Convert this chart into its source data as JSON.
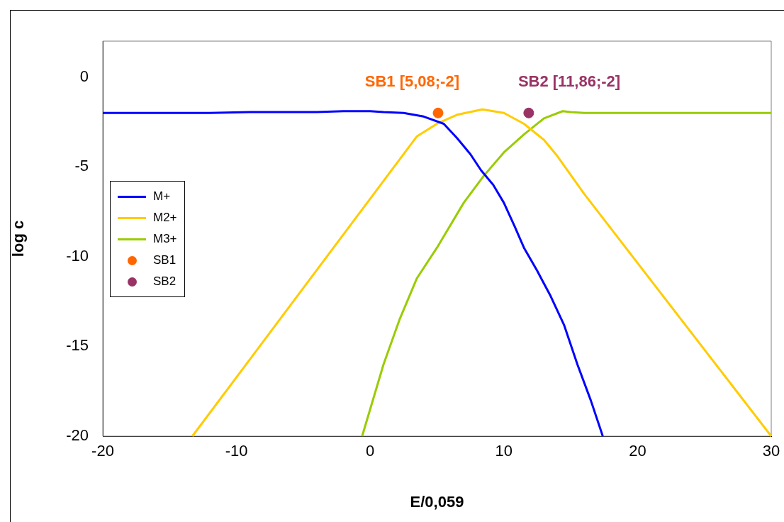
{
  "chart_data": {
    "type": "line",
    "xlabel": "E/0,059",
    "ylabel": "log c",
    "xlim": [
      -20,
      30
    ],
    "xticks": [
      -20,
      -10,
      0,
      10,
      20,
      30
    ],
    "ylim": [
      -20,
      2
    ],
    "yticks": [
      -20,
      -15,
      -10,
      -5,
      0
    ],
    "grid": false,
    "legend": "left",
    "marker": "none",
    "line_style": "solid",
    "series": [
      {
        "name": "M+",
        "color": "#0000ff",
        "x": [
          -20,
          -12,
          -9,
          -4,
          -2,
          0,
          1,
          2.5,
          4,
          5.5,
          6.5,
          7.5,
          8.3,
          9.2,
          10,
          10.8,
          11.5,
          12.5,
          13.5,
          14.5,
          15.5,
          16.5,
          17.4
        ],
        "values": [
          -2,
          -2,
          -1.95,
          -1.95,
          -1.9,
          -1.9,
          -1.95,
          -2,
          -2.2,
          -2.6,
          -3.4,
          -4.3,
          -5.2,
          -6,
          -7,
          -8.3,
          -9.5,
          -10.8,
          -12.2,
          -13.8,
          -16,
          -18,
          -20
        ]
      },
      {
        "name": "M2+",
        "color": "#ffcc00",
        "x": [
          -13.3,
          3.5,
          5,
          6.5,
          8.4,
          10,
          11.5,
          13,
          14,
          16,
          30
        ],
        "values": [
          -20,
          -3.3,
          -2.6,
          -2.1,
          -1.8,
          -2,
          -2.6,
          -3.5,
          -4.4,
          -6.5,
          -20
        ]
      },
      {
        "name": "M3+",
        "color": "#99cc00",
        "x": [
          -0.6,
          1,
          2.2,
          3.5,
          5,
          7,
          8.5,
          10,
          11.5,
          13,
          14.4,
          15,
          16,
          30
        ],
        "values": [
          -20,
          -16,
          -13.5,
          -11.2,
          -9.5,
          -7,
          -5.5,
          -4.2,
          -3.2,
          -2.3,
          -1.9,
          -1.95,
          -2,
          -2
        ]
      },
      {
        "name": "SB1",
        "type": "scatter",
        "marker": "circle",
        "color": "#ff6600",
        "x": [
          5.08
        ],
        "values": [
          -2
        ]
      },
      {
        "name": "SB2",
        "type": "scatter",
        "marker": "circle",
        "color": "#993366",
        "x": [
          11.86
        ],
        "values": [
          -2
        ]
      }
    ],
    "annotations": [
      {
        "text": "SB1 [5,08;-2]",
        "x": 5.08,
        "y": -2
      },
      {
        "text": "SB2 [11,86;-2]",
        "x": 11.86,
        "y": -2
      }
    ]
  }
}
